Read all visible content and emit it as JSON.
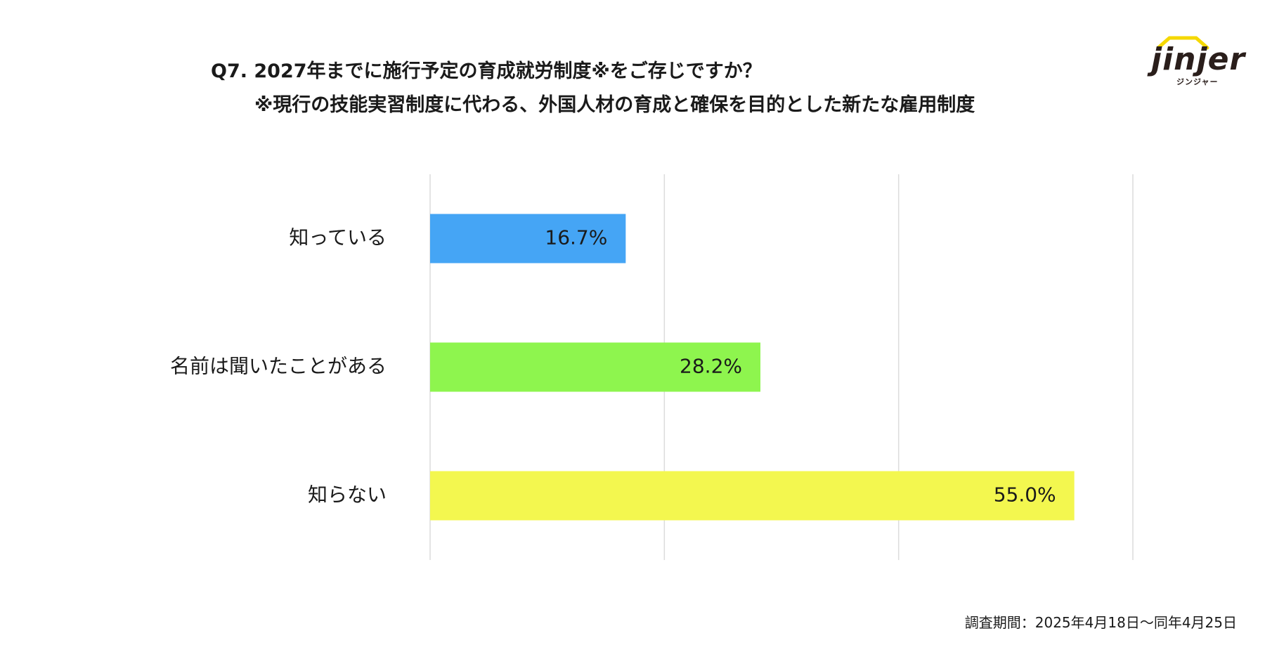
{
  "title": {
    "line1": "Q7. 2027年までに施行予定の育成就労制度※をご存じですか？",
    "line2": "※現行の技能実習制度に代わる、外国人材の育成と確保を目的とした新たな雇用制度"
  },
  "logo": {
    "wordmark": "jinjer",
    "kana": "ジンジャー",
    "roof_color": "#f5d800",
    "text_color": "#2a1e1b"
  },
  "footnote": "調査期間：2025年4月18日〜同年4月25日",
  "chart_data": {
    "type": "bar",
    "orientation": "horizontal",
    "categories": [
      "知っている",
      "名前は聞いたことがある",
      "知らない"
    ],
    "values": [
      16.7,
      28.2,
      55.0
    ],
    "value_labels": [
      "16.7%",
      "28.2%",
      "55.0%"
    ],
    "colors": [
      "#45a5f5",
      "#8ef54e",
      "#f3f74f"
    ],
    "xlim": [
      0,
      60
    ],
    "gridlines": [
      0,
      20,
      40,
      60
    ],
    "grid": true,
    "legend": "none"
  }
}
